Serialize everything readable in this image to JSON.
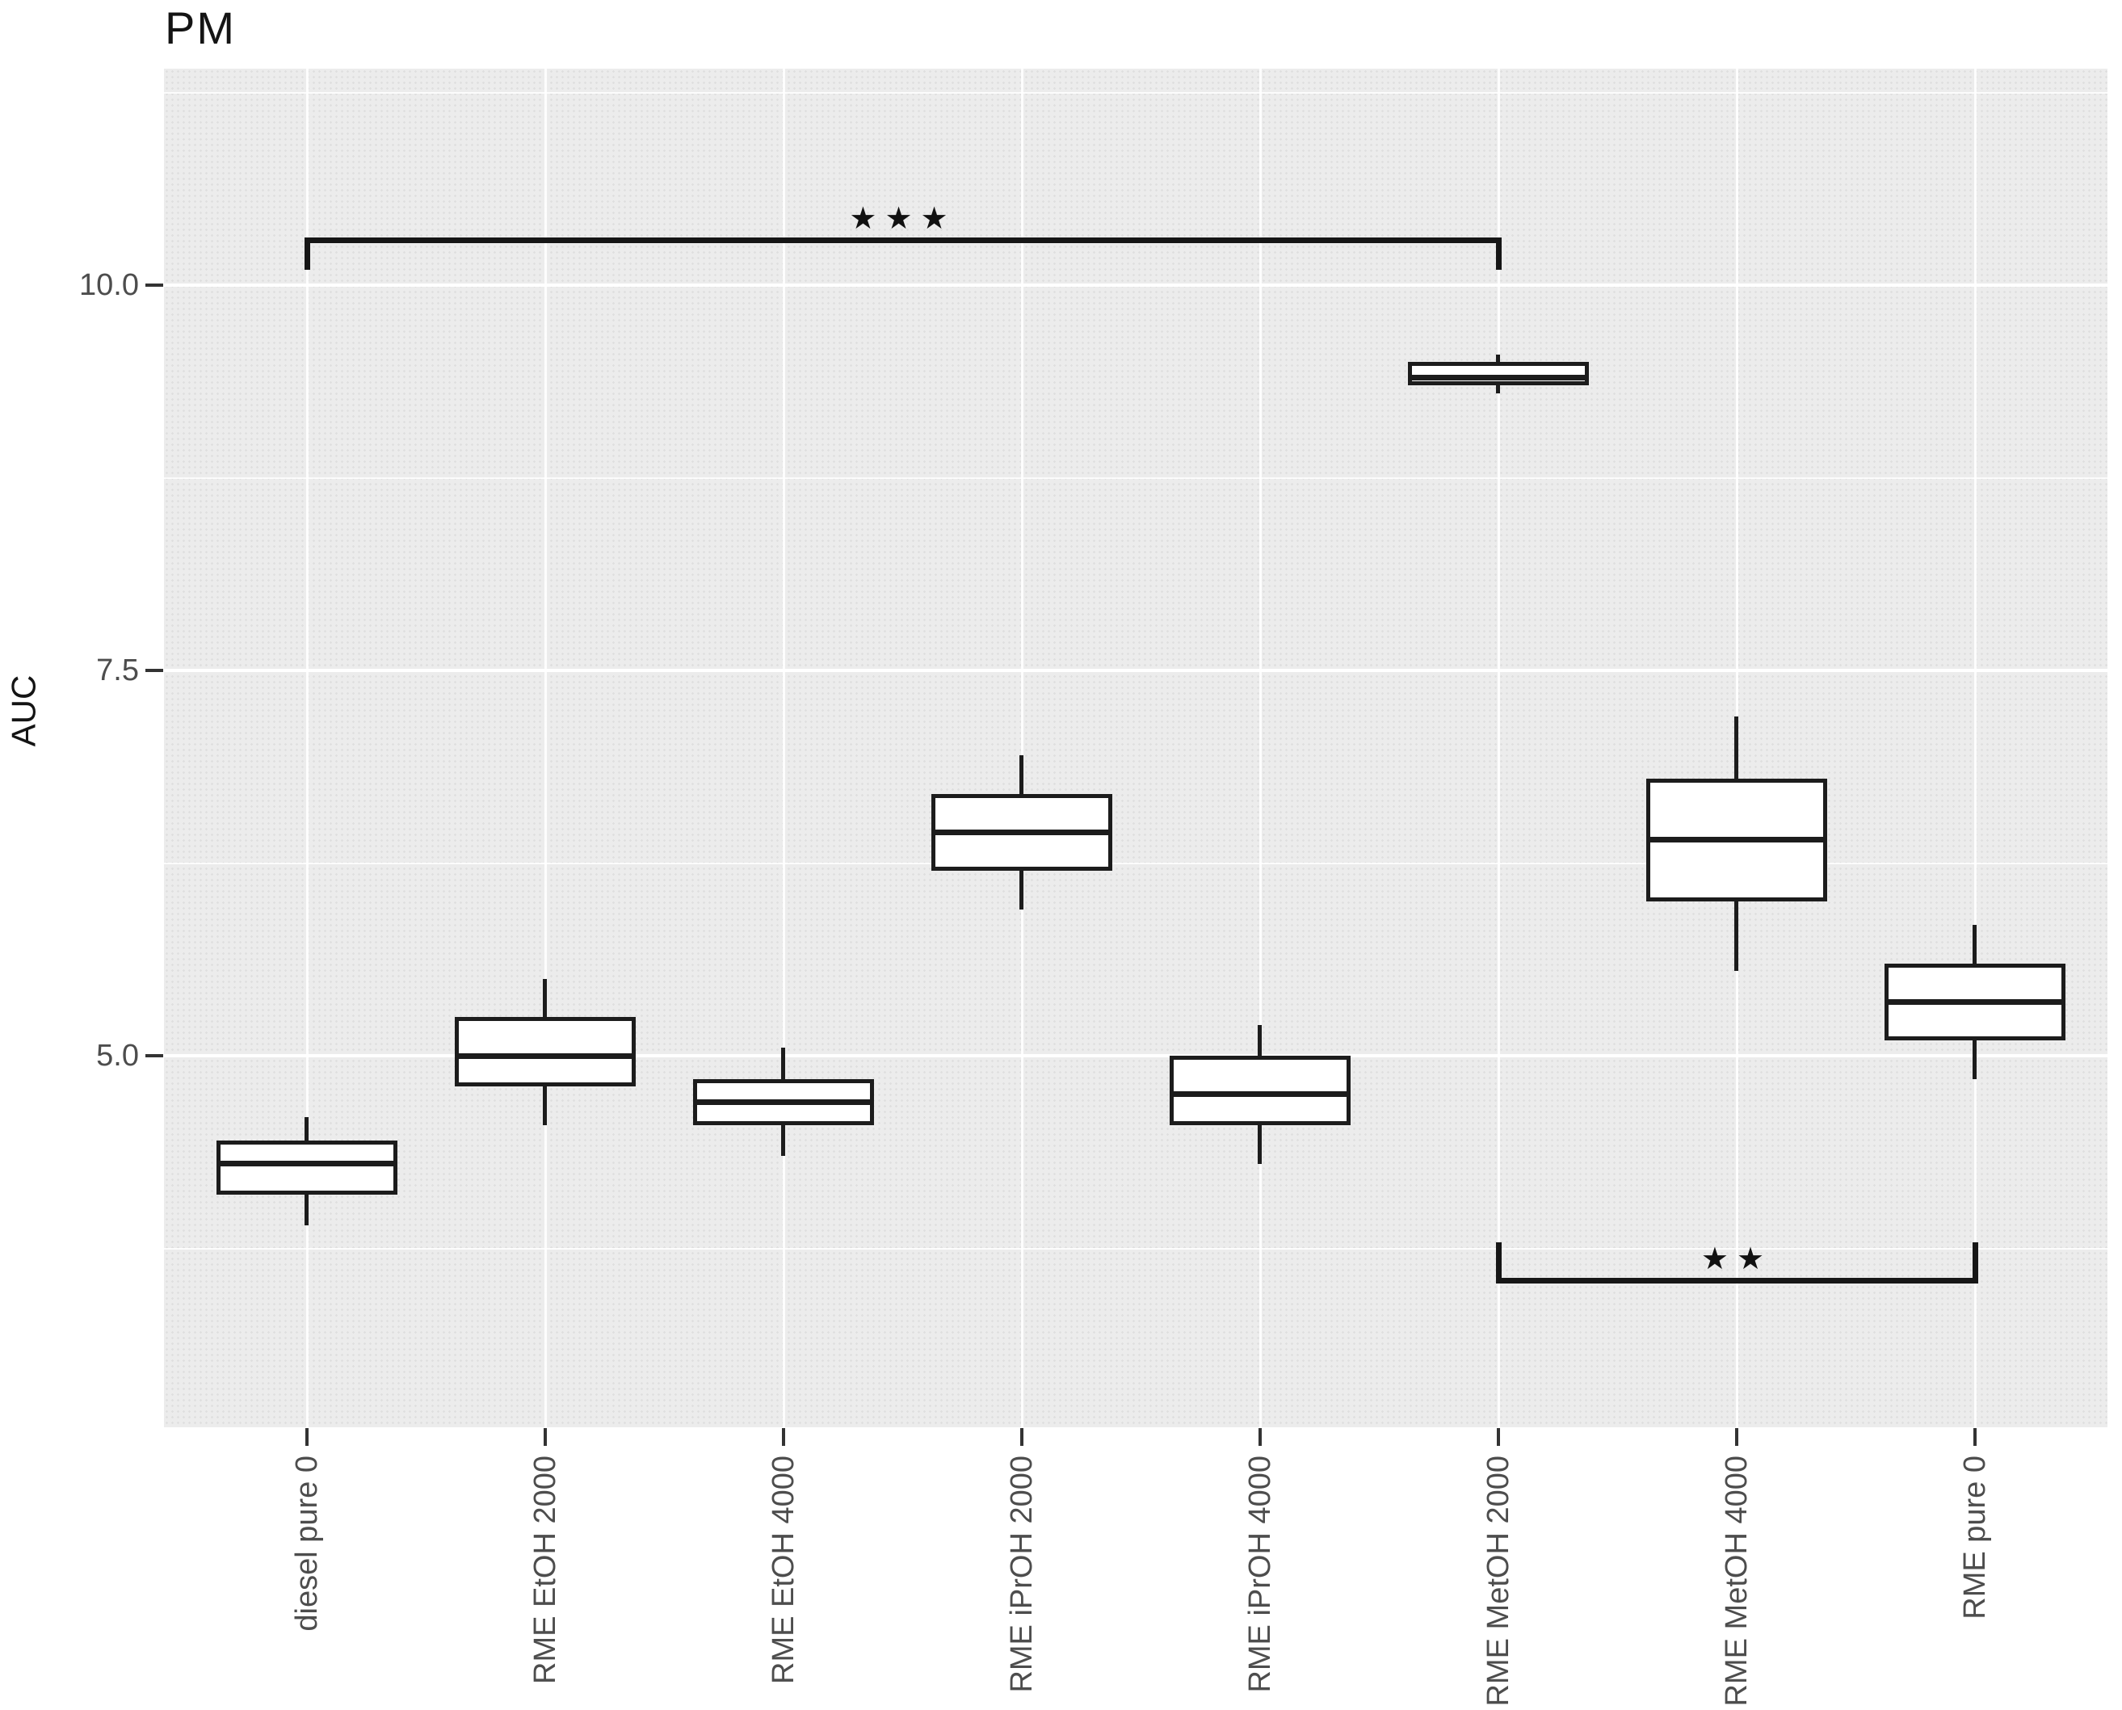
{
  "title": "PM",
  "colors": {
    "panel_background": "#ececec",
    "panel_dot_texture": "#dfdfdf",
    "gridline": "#ffffff",
    "box_fill": "#ffffff",
    "box_stroke": "#1c1c1c",
    "axis_text": "#4d4d4d",
    "title_text": "#141414",
    "annotation": "#111111"
  },
  "star_glyph": "★",
  "chart_data": {
    "type": "boxplot",
    "title": "PM",
    "xlabel": "",
    "ylabel": "AUC",
    "ylim": [
      2.6,
      11.4
    ],
    "grid": "white major and minor horizontal gridlines plus vertical category gridlines on gray panel",
    "legend": "none",
    "y_ticks": [
      {
        "value": 10.0,
        "label": "10.0"
      },
      {
        "value": 7.5,
        "label": "7.5"
      },
      {
        "value": 5.0,
        "label": "5.0"
      }
    ],
    "y_minor_gridlines": [
      3.75,
      6.25,
      8.75,
      11.25
    ],
    "categories": [
      "diesel pure 0",
      "RME EtOH 2000",
      "RME EtOH 4000",
      "RME iPrOH 2000",
      "RME iPrOH 4000",
      "RME MetOH 2000",
      "RME MetOH 4000",
      "RME pure 0"
    ],
    "boxes": [
      {
        "category": "diesel pure 0",
        "whisker_low": 3.9,
        "q1": 4.1,
        "median": 4.3,
        "q3": 4.45,
        "whisker_high": 4.6
      },
      {
        "category": "RME EtOH 2000",
        "whisker_low": 4.55,
        "q1": 4.8,
        "median": 5.0,
        "q3": 5.25,
        "whisker_high": 5.5
      },
      {
        "category": "RME EtOH 4000",
        "whisker_low": 4.35,
        "q1": 4.55,
        "median": 4.7,
        "q3": 4.85,
        "whisker_high": 5.05
      },
      {
        "category": "RME iPrOH 2000",
        "whisker_low": 5.95,
        "q1": 6.2,
        "median": 6.45,
        "q3": 6.7,
        "whisker_high": 6.95
      },
      {
        "category": "RME iPrOH 4000",
        "whisker_low": 4.3,
        "q1": 4.55,
        "median": 4.75,
        "q3": 5.0,
        "whisker_high": 5.2
      },
      {
        "category": "RME MetOH 2000",
        "whisker_low": 9.3,
        "q1": 9.35,
        "median": 9.4,
        "q3": 9.5,
        "whisker_high": 9.55
      },
      {
        "category": "RME MetOH 4000",
        "whisker_low": 5.55,
        "q1": 6.0,
        "median": 6.4,
        "q3": 6.8,
        "whisker_high": 7.2
      },
      {
        "category": "RME pure 0",
        "whisker_low": 4.85,
        "q1": 5.1,
        "median": 5.35,
        "q3": 5.6,
        "whisker_high": 5.85
      }
    ],
    "annotations": [
      {
        "type": "significance_bracket",
        "label": "***",
        "from_category": "diesel pure 0",
        "to_category": "RME MetOH 2000",
        "bar_y": 10.29,
        "tick_end_y": 10.1,
        "tick_direction": "down"
      },
      {
        "type": "significance_bracket",
        "label": "**",
        "from_category": "RME MetOH 2000",
        "to_category": "RME pure 0",
        "bar_y": 3.54,
        "tick_end_y": 3.79,
        "tick_direction": "up"
      }
    ]
  }
}
